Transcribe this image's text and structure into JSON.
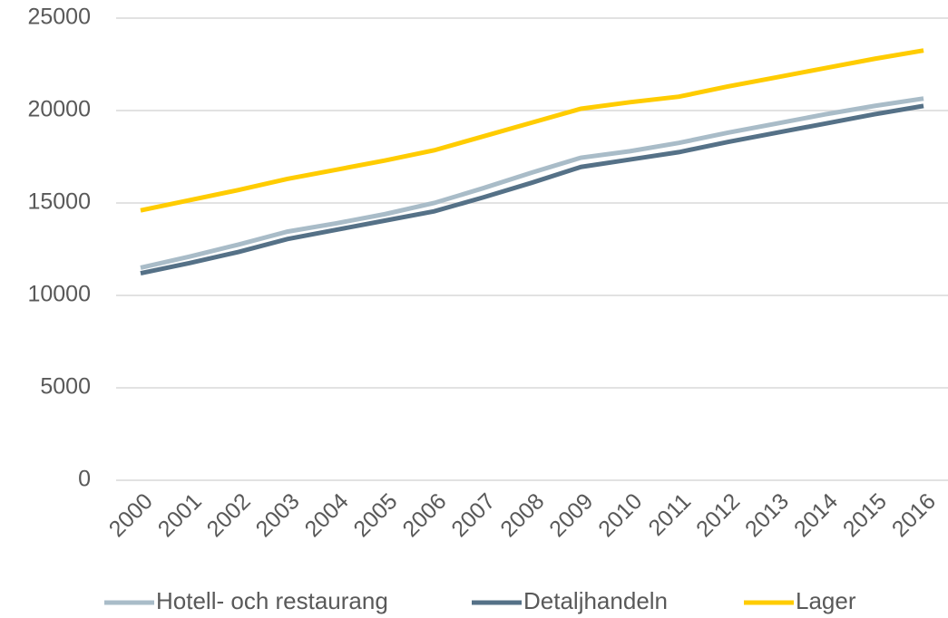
{
  "chart_data": {
    "type": "line",
    "categories": [
      "2000",
      "2001",
      "2002",
      "2003",
      "2004",
      "2005",
      "2006",
      "2007",
      "2008",
      "2009",
      "2010",
      "2011",
      "2012",
      "2013",
      "2014",
      "2015",
      "2016"
    ],
    "series": [
      {
        "name": "Hotell- och restaurang",
        "color": "#a9bcc8",
        "values": [
          11500,
          12100,
          12750,
          13450,
          13900,
          14400,
          15000,
          15800,
          16650,
          17450,
          17800,
          18250,
          18800,
          19300,
          19800,
          20250,
          20650
        ]
      },
      {
        "name": "Detaljhandeln",
        "color": "#557187",
        "values": [
          11200,
          11750,
          12350,
          13050,
          13550,
          14050,
          14550,
          15300,
          16100,
          16950,
          17350,
          17750,
          18300,
          18800,
          19300,
          19800,
          20250
        ]
      },
      {
        "name": "Lager",
        "color": "#ffcc00",
        "values": [
          14600,
          15150,
          15700,
          16300,
          16800,
          17300,
          17850,
          18600,
          19350,
          20100,
          20450,
          20750,
          21300,
          21800,
          22300,
          22800,
          23250
        ]
      }
    ],
    "ylim": [
      0,
      25000
    ],
    "yticks": [
      0,
      5000,
      10000,
      15000,
      20000,
      25000
    ],
    "grid": true,
    "legend": "bottom"
  }
}
